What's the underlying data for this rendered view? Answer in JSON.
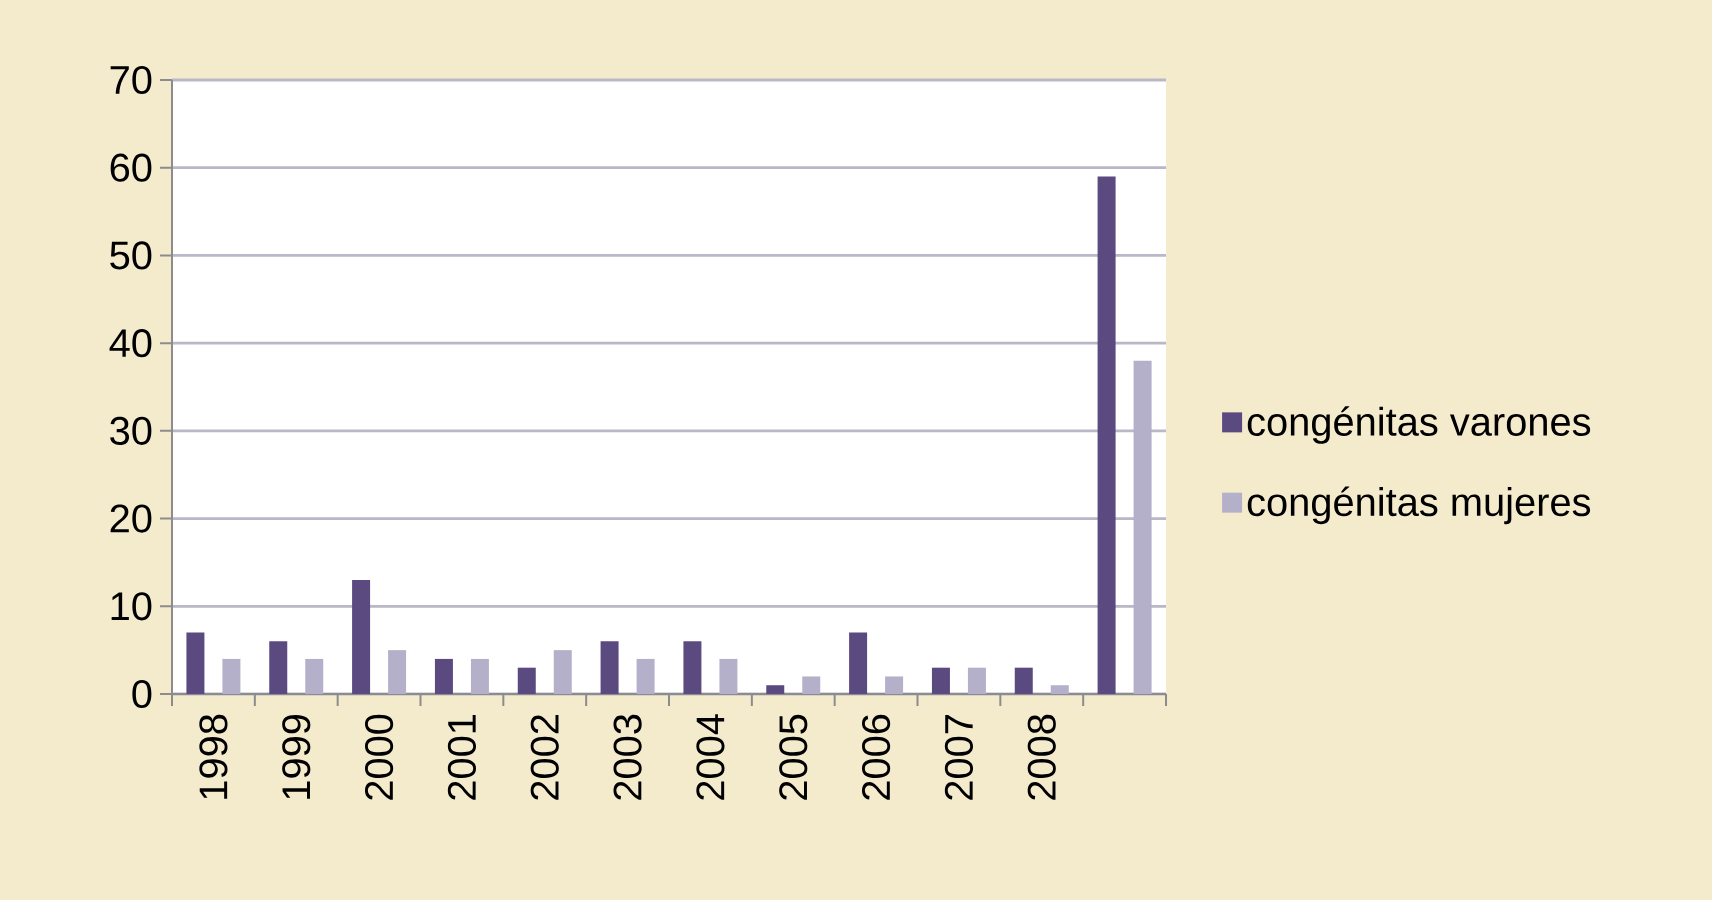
{
  "chart_data": {
    "type": "bar",
    "categories": [
      "1998",
      "1999",
      "2000",
      "2001",
      "2002",
      "2003",
      "2004",
      "2005",
      "2006",
      "2007",
      "2008",
      null
    ],
    "series": [
      {
        "name": "congénitas varones",
        "color": "#5b4a80",
        "values": [
          7,
          6,
          13,
          4,
          3,
          6,
          6,
          1,
          7,
          3,
          3,
          59
        ]
      },
      {
        "name": "congénitas mujeres",
        "color": "#b4b0c9",
        "values": [
          4,
          4,
          5,
          4,
          5,
          4,
          4,
          2,
          2,
          3,
          1,
          38
        ]
      }
    ],
    "ylim": [
      0,
      70
    ],
    "yticks": [
      0,
      10,
      20,
      30,
      40,
      50,
      60,
      70
    ],
    "grid": "y",
    "legend": "right"
  }
}
